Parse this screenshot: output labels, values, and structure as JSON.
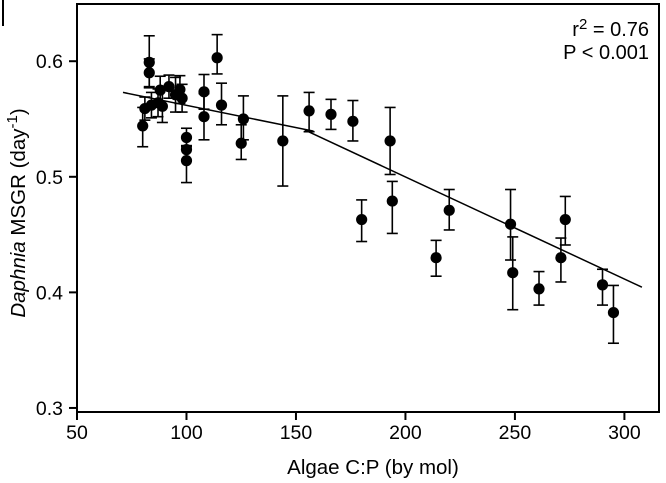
{
  "figure": {
    "background": "#ffffff",
    "ink_color": "#000000"
  },
  "chart_data": {
    "type": "scatter",
    "title": "",
    "xlabel": "Algae C:P (by mol)",
    "ylabel": "Daphnia MSGR (day-1)",
    "ylabel_parts": {
      "species": "Daphnia",
      "rest": " MSGR (day",
      "sup": "-1",
      "close": ")"
    },
    "annotation": {
      "r_label": "r",
      "r_sup": "2",
      "r_value": " = 0.76",
      "p_value": "P < 0.001"
    },
    "xlim": [
      50,
      315.8
    ],
    "ylim": [
      0.2965,
      0.6495
    ],
    "grid": false,
    "x_ticks": [
      {
        "v": 50,
        "label": "50"
      },
      {
        "v": 100,
        "label": "100"
      },
      {
        "v": 150,
        "label": "150"
      },
      {
        "v": 200,
        "label": "200"
      },
      {
        "v": 250,
        "label": "250"
      },
      {
        "v": 300,
        "label": "300"
      }
    ],
    "y_ticks": [
      {
        "v": 0.3,
        "label": "0.3"
      },
      {
        "v": 0.4,
        "label": "0.4"
      },
      {
        "v": 0.5,
        "label": "0.5"
      },
      {
        "v": 0.6,
        "label": "0.6"
      }
    ],
    "marker": {
      "shape": "filled-circle",
      "color": "#000000",
      "radius_px": 5.6
    },
    "error_bars": "vertical-capped",
    "points_format": [
      "algae_CP",
      "daphnia_MSGR",
      "err_plus",
      "err_minus"
    ],
    "points": [
      [
        83,
        0.599,
        0.023,
        0.022
      ],
      [
        83,
        0.59,
        0.012,
        0.012
      ],
      [
        80,
        0.544,
        0.016,
        0.018
      ],
      [
        81,
        0.559,
        0.01,
        0.01
      ],
      [
        84,
        0.562,
        0.011,
        0.011
      ],
      [
        87,
        0.564,
        0.012,
        0.012
      ],
      [
        88,
        0.575,
        0.012,
        0.012
      ],
      [
        89,
        0.561,
        0.014,
        0.014
      ],
      [
        92,
        0.578,
        0.01,
        0.01
      ],
      [
        95,
        0.571,
        0.015,
        0.015
      ],
      [
        97,
        0.5755,
        0.012,
        0.012
      ],
      [
        98,
        0.568,
        0.012,
        0.012
      ],
      [
        100,
        0.534,
        0.008,
        0.008
      ],
      [
        100,
        0.5235,
        0.01,
        0.01
      ],
      [
        100,
        0.514,
        0.013,
        0.019
      ],
      [
        108,
        0.5735,
        0.015,
        0.015
      ],
      [
        108,
        0.552,
        0.02,
        0.02
      ],
      [
        114,
        0.603,
        0.02,
        0.014
      ],
      [
        116,
        0.562,
        0.019,
        0.017
      ],
      [
        126,
        0.55,
        0.02,
        0.018
      ],
      [
        125,
        0.529,
        0.016,
        0.014
      ],
      [
        144,
        0.531,
        0.039,
        0.039
      ],
      [
        156,
        0.557,
        0.016,
        0.018
      ],
      [
        166,
        0.554,
        0.013,
        0.013
      ],
      [
        176,
        0.548,
        0.018,
        0.017
      ],
      [
        180,
        0.463,
        0.017,
        0.019
      ],
      [
        193,
        0.531,
        0.029,
        0.029
      ],
      [
        194,
        0.479,
        0.017,
        0.028
      ],
      [
        214,
        0.43,
        0.015,
        0.016
      ],
      [
        220,
        0.471,
        0.018,
        0.017
      ],
      [
        248,
        0.459,
        0.03,
        0.031
      ],
      [
        249,
        0.417,
        0.031,
        0.032
      ],
      [
        261,
        0.403,
        0.015,
        0.014
      ],
      [
        271,
        0.43,
        0.017,
        0.021
      ],
      [
        273,
        0.463,
        0.02,
        0.022
      ],
      [
        290,
        0.4065,
        0.0135,
        0.0175
      ],
      [
        295,
        0.3825,
        0.0235,
        0.0265
      ]
    ],
    "trend_line": {
      "style": "segmented-linear",
      "color": "#000000",
      "segments": [
        {
          "x1": 71,
          "y1": 0.573,
          "x2": 158,
          "y2": 0.5395
        },
        {
          "x1": 154,
          "y1": 0.5405,
          "x2": 308,
          "y2": 0.4045
        }
      ]
    }
  }
}
